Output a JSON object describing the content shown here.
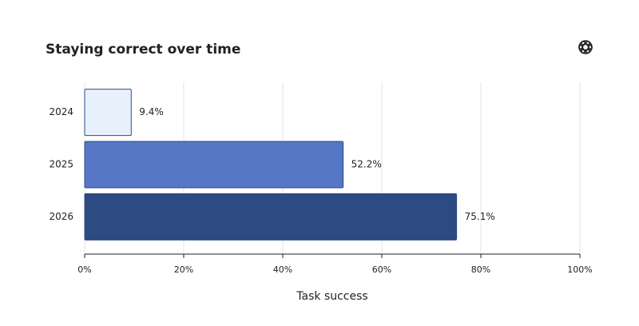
{
  "chart_data": {
    "type": "barh",
    "title": "Staying correct over time",
    "categories": [
      "2024",
      "2025",
      "2026"
    ],
    "values": [
      9.4,
      52.2,
      75.1
    ],
    "value_labels": [
      "9.4%",
      "52.2%",
      "75.1%"
    ],
    "colors": [
      "#e8f0fc",
      "#5577c4",
      "#2e4a82"
    ],
    "xlabel": "Task success",
    "xlim": [
      0,
      100
    ],
    "xticks": [
      {
        "value": 0,
        "label": "0%"
      },
      {
        "value": 20,
        "label": "20%"
      },
      {
        "value": 40,
        "label": "40%"
      },
      {
        "value": 60,
        "label": "60%"
      },
      {
        "value": 80,
        "label": "80%"
      },
      {
        "value": 100,
        "label": "100%"
      }
    ],
    "grid": true
  }
}
